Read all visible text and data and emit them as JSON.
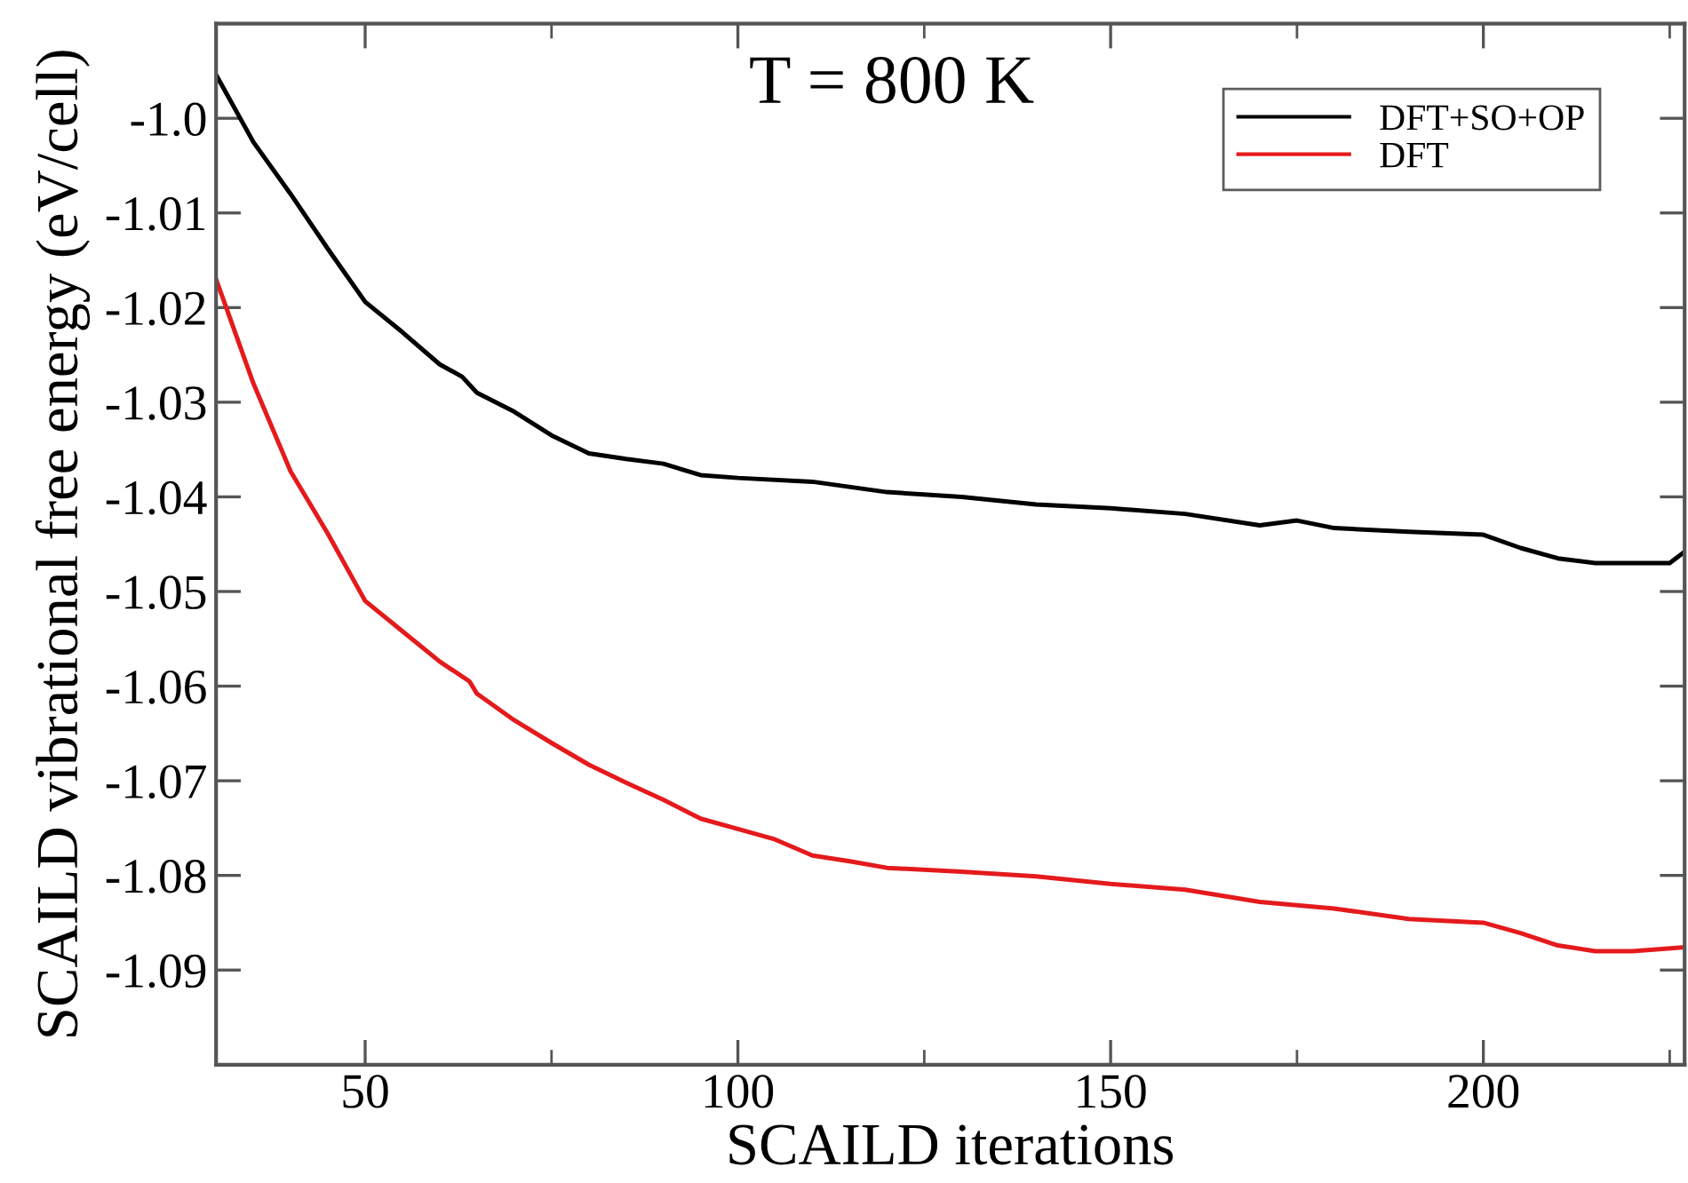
{
  "chart_data": {
    "type": "line",
    "xlabel": "SCAILD iterations",
    "ylabel": "SCAILD vibrational free energy (eV/cell)",
    "annotations": [
      "T = 800 K"
    ],
    "xlim": [
      30,
      227
    ],
    "ylim": [
      -1.1,
      -0.99
    ],
    "xticks": [
      50,
      {
        "value": 75,
        "label": null
      },
      100,
      {
        "value": 125,
        "label": null
      },
      150,
      {
        "value": 175,
        "label": null
      },
      200,
      {
        "value": 225,
        "label": null
      }
    ],
    "yticks": [
      {
        "value": -1.0,
        "label": "-1.0"
      },
      -1.01,
      -1.02,
      -1.03,
      -1.04,
      -1.05,
      -1.06,
      -1.07,
      -1.08,
      -1.09
    ],
    "grid": false,
    "legend": "top right",
    "marker": "none",
    "line_style": "solid",
    "series": [
      {
        "name": "DFT+SO+OP",
        "color": "#000000",
        "x": [
          30,
          35,
          40,
          45,
          50,
          55,
          60,
          63,
          65,
          70,
          75,
          80,
          85,
          90,
          95,
          100,
          110,
          120,
          130,
          140,
          150,
          160,
          170,
          175,
          180,
          190,
          200,
          205,
          210,
          215,
          220,
          225,
          227
        ],
        "values": [
          -0.9954,
          -1.0025,
          -1.008,
          -1.0138,
          -1.0194,
          -1.0226,
          -1.026,
          -1.0273,
          -1.029,
          -1.031,
          -1.0335,
          -1.0354,
          -1.036,
          -1.0365,
          -1.0377,
          -1.038,
          -1.0384,
          -1.0395,
          -1.04,
          -1.0408,
          -1.0412,
          -1.0418,
          -1.043,
          -1.0425,
          -1.0433,
          -1.0437,
          -1.044,
          -1.0454,
          -1.0465,
          -1.047,
          -1.047,
          -1.047,
          -1.0458
        ]
      },
      {
        "name": "DFT",
        "color": "#e41a1c",
        "x": [
          30,
          35,
          40,
          45,
          50,
          55,
          60,
          64,
          65,
          70,
          75,
          80,
          85,
          90,
          95,
          100,
          105,
          110,
          115,
          120,
          130,
          140,
          150,
          160,
          170,
          180,
          190,
          200,
          205,
          210,
          215,
          220,
          227
        ],
        "values": [
          -1.017,
          -1.028,
          -1.0373,
          -1.0439,
          -1.051,
          -1.0542,
          -1.0574,
          -1.0595,
          -1.0608,
          -1.0636,
          -1.066,
          -1.0683,
          -1.0702,
          -1.072,
          -1.074,
          -1.0751,
          -1.0762,
          -1.0779,
          -1.0785,
          -1.0792,
          -1.0796,
          -1.0801,
          -1.0809,
          -1.0815,
          -1.0828,
          -1.0835,
          -1.0846,
          -1.085,
          -1.0861,
          -1.0874,
          -1.088,
          -1.088,
          -1.0876
        ]
      }
    ]
  }
}
